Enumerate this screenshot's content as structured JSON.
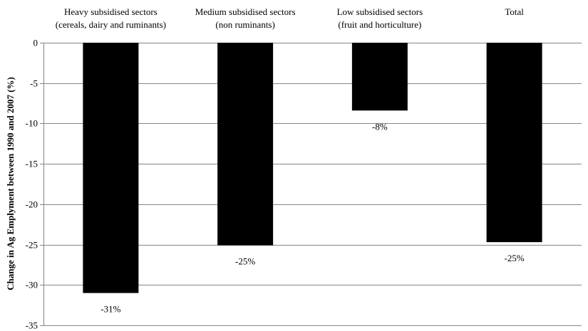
{
  "chart_data": {
    "type": "bar",
    "categories": [
      [
        "Heavy subsidised sectors",
        "(cereals, dairy and ruminants)"
      ],
      [
        "Medium subsidised sectors",
        "(non ruminants)"
      ],
      [
        "Low subsidised sectors",
        "(fruit and horticulture)"
      ],
      [
        "Total"
      ]
    ],
    "values": [
      -31,
      -25.1,
      -8.4,
      -24.7
    ],
    "data_labels": [
      "-31%",
      "-25%",
      "-8%",
      "-25%"
    ],
    "title": "",
    "xlabel": "",
    "ylabel": "Change in Ag Emplyment between 1990 and 2007 (%)",
    "ylim": [
      -35,
      0
    ],
    "yticks": [
      0,
      -5,
      -10,
      -15,
      -20,
      -25,
      -30,
      -35
    ],
    "grid": true,
    "legend": "none",
    "bar_color": "#000000",
    "grid_color": "#868686"
  }
}
